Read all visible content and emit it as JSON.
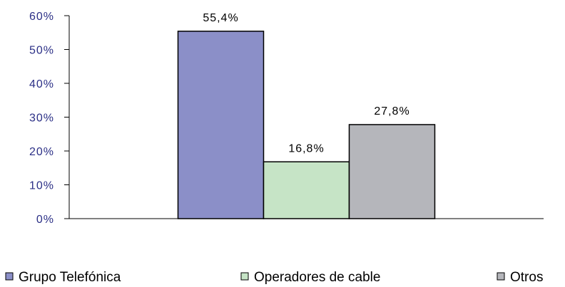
{
  "chart_data": {
    "type": "bar",
    "categories": [
      null
    ],
    "series": [
      {
        "name": "Grupo Telefónica",
        "color": "#8b8fc8",
        "values": [
          55.4
        ],
        "value_labels": [
          "55,4%"
        ]
      },
      {
        "name": "Operadores de cable",
        "color": "#c6e4c6",
        "values": [
          16.8
        ],
        "value_labels": [
          "16,8%"
        ]
      },
      {
        "name": "Otros",
        "color": "#b5b6bb",
        "values": [
          27.8
        ],
        "value_labels": [
          "27,8%"
        ]
      }
    ],
    "ylim": [
      0,
      60
    ],
    "yticks": [
      {
        "value": 0,
        "label": "0%"
      },
      {
        "value": 10,
        "label": "10%"
      },
      {
        "value": 20,
        "label": "20%"
      },
      {
        "value": 30,
        "label": "30%"
      },
      {
        "value": 40,
        "label": "40%"
      },
      {
        "value": 50,
        "label": "50%"
      },
      {
        "value": 60,
        "label": "60%"
      }
    ],
    "grid": false,
    "legend": "bottom"
  }
}
